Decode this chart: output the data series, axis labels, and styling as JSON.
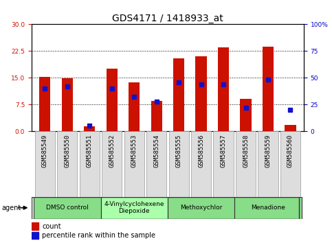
{
  "title": "GDS4171 / 1418933_at",
  "samples": [
    "GSM585549",
    "GSM585550",
    "GSM585551",
    "GSM585552",
    "GSM585553",
    "GSM585554",
    "GSM585555",
    "GSM585556",
    "GSM585557",
    "GSM585558",
    "GSM585559",
    "GSM585560"
  ],
  "count_values": [
    15.3,
    14.8,
    1.3,
    17.5,
    13.7,
    8.5,
    20.5,
    21.0,
    23.5,
    9.0,
    23.8,
    1.8
  ],
  "percentile_values": [
    40,
    42,
    5,
    40,
    32,
    28,
    46,
    44,
    44,
    22,
    48,
    20
  ],
  "left_yticks": [
    0,
    7.5,
    15,
    22.5,
    30
  ],
  "right_yticks": [
    0,
    25,
    50,
    75,
    100
  ],
  "ylim_left": [
    0,
    30
  ],
  "ylim_right": [
    0,
    100
  ],
  "bar_color_red": "#cc1100",
  "bar_color_blue": "#1111cc",
  "agent_groups": [
    {
      "label": "DMSO control",
      "start": 0,
      "end": 2,
      "color": "#88dd88"
    },
    {
      "label": "4-Vinylcyclohexene\nDiepoxide",
      "start": 3,
      "end": 5,
      "color": "#aaffaa"
    },
    {
      "label": "Methoxychlor",
      "start": 6,
      "end": 8,
      "color": "#88dd88"
    },
    {
      "label": "Menadione",
      "start": 9,
      "end": 11,
      "color": "#88dd88"
    }
  ],
  "xtick_bg_color": "#dddddd",
  "legend_count_label": "count",
  "legend_pct_label": "percentile rank within the sample",
  "agent_label": "agent",
  "bar_width": 0.5,
  "title_fontsize": 10,
  "tick_fontsize": 6.5,
  "right_axis_color": "#0000cc",
  "left_axis_color": "#cc1100",
  "plot_bg_color": "#ffffff",
  "fig_bg_color": "#ffffff"
}
